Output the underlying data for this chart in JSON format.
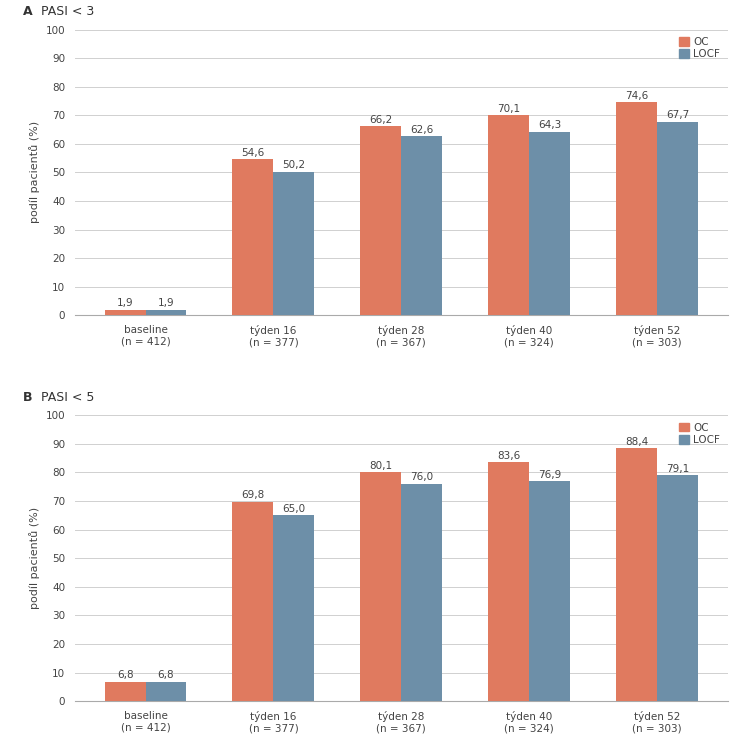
{
  "panel_A": {
    "title_bold": "A",
    "title_normal": "  PASI < 3",
    "oc_values": [
      1.9,
      54.6,
      66.2,
      70.1,
      74.6
    ],
    "locf_values": [
      1.9,
      50.2,
      62.6,
      64.3,
      67.7
    ]
  },
  "panel_B": {
    "title_bold": "B",
    "title_normal": "  PASI < 5",
    "oc_values": [
      6.8,
      69.8,
      80.1,
      83.6,
      88.4
    ],
    "locf_values": [
      6.8,
      65.0,
      76.0,
      76.9,
      79.1
    ]
  },
  "categories": [
    "baseline\n(n = 412)",
    "týden 16\n(n = 377)",
    "týden 28\n(n = 367)",
    "týden 40\n(n = 324)",
    "týden 52\n(n = 303)"
  ],
  "ylabel": "podíl pacientů (%)",
  "ylim": [
    0,
    100
  ],
  "yticks": [
    0,
    10,
    20,
    30,
    40,
    50,
    60,
    70,
    80,
    90,
    100
  ],
  "color_oc": "#E07A5F",
  "color_locf": "#6D8FA8",
  "bar_width": 0.32,
  "legend_labels": [
    "OC",
    "LOCF"
  ],
  "label_fontsize": 7.5,
  "tick_fontsize": 7.5,
  "title_fontsize": 9,
  "ylabel_fontsize": 8,
  "background_color": "#ffffff",
  "grid_color": "#d0d0d0"
}
